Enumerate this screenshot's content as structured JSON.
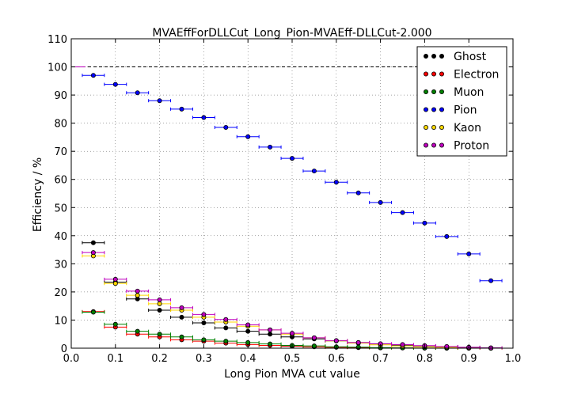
{
  "chart_data": {
    "type": "scatter",
    "title": "MVAEffForDLLCut_Long_Pion-MVAEff-DLLCut-2.000",
    "xlabel": "Long Pion MVA cut value",
    "ylabel": "Efficiency / %",
    "xlim": [
      0.0,
      1.0
    ],
    "ylim": [
      0,
      110
    ],
    "xticks": [
      "0.0",
      "0.1",
      "0.2",
      "0.3",
      "0.4",
      "0.5",
      "0.6",
      "0.7",
      "0.8",
      "0.9",
      "1.0"
    ],
    "yticks": [
      "0",
      "10",
      "20",
      "30",
      "40",
      "50",
      "60",
      "70",
      "80",
      "90",
      "100",
      "110"
    ],
    "grid": true,
    "reference_line": 100,
    "legend_position": "top-right",
    "x": [
      0.05,
      0.1,
      0.15,
      0.2,
      0.25,
      0.3,
      0.35,
      0.4,
      0.45,
      0.5,
      0.55,
      0.6,
      0.65,
      0.7,
      0.75,
      0.8,
      0.85,
      0.9,
      0.95
    ],
    "x_error": 0.025,
    "series": [
      {
        "name": "Ghost",
        "color": "#000000",
        "values": [
          37.5,
          23.5,
          17.5,
          13.5,
          11.0,
          9.0,
          7.2,
          6.0,
          5.0,
          4.0,
          3.3,
          2.6,
          2.0,
          1.5,
          1.1,
          0.8,
          0.5,
          0.3,
          0.1
        ]
      },
      {
        "name": "Electron",
        "color": "#ff0000",
        "values": [
          13.0,
          7.5,
          5.0,
          4.0,
          3.0,
          2.5,
          1.8,
          1.3,
          1.0,
          0.7,
          0.5,
          0.3,
          0.2,
          0.1,
          0.1,
          0.05,
          0.0,
          0.0,
          0.0
        ]
      },
      {
        "name": "Muon",
        "color": "#008000",
        "values": [
          12.8,
          8.5,
          6.0,
          5.0,
          4.0,
          3.0,
          2.5,
          2.0,
          1.5,
          1.0,
          0.8,
          0.5,
          0.4,
          0.2,
          0.1,
          0.05,
          0.0,
          0.0,
          0.0
        ]
      },
      {
        "name": "Pion",
        "color": "#0000ff",
        "values": [
          97.0,
          93.8,
          90.8,
          88.0,
          85.0,
          82.0,
          78.5,
          75.2,
          71.5,
          67.5,
          63.0,
          59.0,
          55.2,
          51.8,
          48.2,
          44.5,
          39.7,
          33.5,
          24.0
        ]
      },
      {
        "name": "Kaon",
        "color": "#ffd700",
        "values": [
          32.8,
          23.0,
          18.8,
          15.8,
          13.5,
          11.0,
          9.3,
          7.8,
          6.5,
          5.0,
          3.7,
          2.6,
          1.8,
          1.2,
          0.8,
          0.5,
          0.3,
          0.1,
          0.0
        ]
      },
      {
        "name": "Proton",
        "color": "#bf00bf",
        "values": [
          34.0,
          24.5,
          20.3,
          17.2,
          14.4,
          12.0,
          10.2,
          8.3,
          6.5,
          5.3,
          3.7,
          2.7,
          2.0,
          1.6,
          1.3,
          0.9,
          0.6,
          0.3,
          0.1
        ]
      }
    ],
    "extra_point": {
      "x": 0.02,
      "y": 100,
      "color": "#bf00bf"
    }
  }
}
